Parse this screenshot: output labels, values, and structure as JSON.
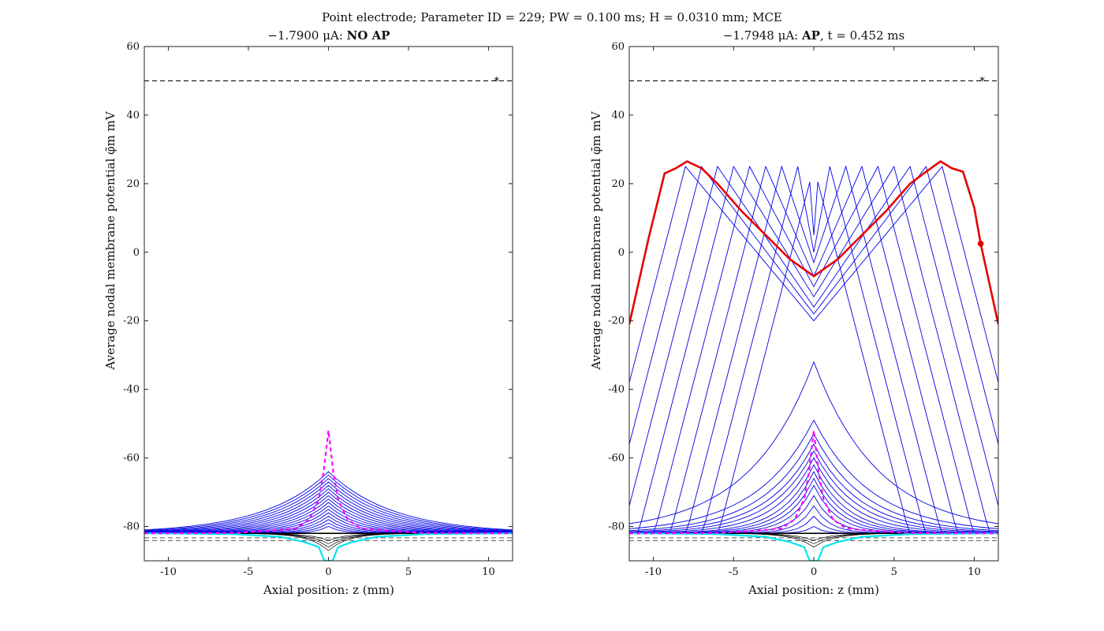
{
  "page": {
    "suptitle": "Point electrode; Parameter ID = 229; PW = 0.100 ms; H = 0.0310 mm; MCE"
  },
  "colors": {
    "blue": "#0000e6",
    "red": "#e60000",
    "magenta": "#ff00ff",
    "cyan": "#00e5ee",
    "black": "#000000",
    "gray": "#555555"
  },
  "chart_data": [
    {
      "type": "line",
      "title_prefix": "−1.7900 μA: ",
      "title_bold": "NO AP",
      "title_suffix": "",
      "xlabel": "Axial position: z (mm)",
      "ylabel": "Average nodal membrane potential φ̄m mV",
      "xlim": [
        -11.5,
        11.5
      ],
      "ylim": [
        -90,
        60
      ],
      "xticks": [
        -10,
        -5,
        0,
        5,
        10
      ],
      "xtick_labels": [
        "-10",
        "-5",
        "0",
        "5",
        "10"
      ],
      "yticks": [
        -80,
        -60,
        -40,
        -20,
        0,
        20,
        40,
        60
      ],
      "ytick_labels": [
        "-80",
        "-60",
        "-40",
        "-20",
        "0",
        "20",
        "40",
        "60"
      ],
      "grid": false,
      "threshold_line": 50,
      "threshold_marker": {
        "x": 10.5,
        "y": 50
      },
      "rest_lines": [
        -83.3,
        -84.1
      ],
      "baseline": -82,
      "blue_family": {
        "peaks": [
          -64,
          -65,
          -66,
          -67,
          -68,
          -69,
          -70,
          -71,
          -72,
          -73,
          -74,
          -75,
          -76,
          -77,
          -78,
          -79,
          -80
        ],
        "widths": [
          4.0,
          3.8,
          3.6,
          3.4,
          3.2,
          3.0,
          2.8,
          2.6,
          2.4,
          2.2,
          2.0,
          1.8,
          1.6,
          1.4,
          1.2,
          1.0,
          0.8
        ]
      },
      "magenta": [
        [
          -11.5,
          -82
        ],
        [
          -6,
          -81.9
        ],
        [
          -3,
          -81
        ],
        [
          -2,
          -80.5
        ],
        [
          -1.2,
          -78
        ],
        [
          -0.6,
          -72
        ],
        [
          -0.3,
          -64
        ],
        [
          0,
          -52
        ],
        [
          0.3,
          -64
        ],
        [
          0.6,
          -72
        ],
        [
          1.2,
          -78
        ],
        [
          2,
          -80.5
        ],
        [
          3,
          -81
        ],
        [
          6,
          -81.9
        ],
        [
          11.5,
          -82
        ]
      ],
      "cyan": [
        [
          -11.5,
          -82
        ],
        [
          -6,
          -82.2
        ],
        [
          -3,
          -83
        ],
        [
          -1.5,
          -84.5
        ],
        [
          -0.6,
          -86
        ],
        [
          -0.25,
          -90
        ],
        [
          0.25,
          -90
        ],
        [
          0.6,
          -86
        ],
        [
          1.5,
          -84.5
        ],
        [
          3,
          -83
        ],
        [
          6,
          -82.2
        ],
        [
          11.5,
          -82
        ]
      ],
      "dips": [
        -84,
        -85,
        -86,
        -87
      ],
      "red": null
    },
    {
      "type": "line",
      "title_prefix": "−1.7948 μA: ",
      "title_bold": "AP",
      "title_suffix": ", t = 0.452 ms",
      "xlabel": "Axial position: z (mm)",
      "ylabel": "Average nodal membrane potential φ̄m mV",
      "xlim": [
        -11.5,
        11.5
      ],
      "ylim": [
        -90,
        60
      ],
      "xticks": [
        -10,
        -5,
        0,
        5,
        10
      ],
      "xtick_labels": [
        "-10",
        "-5",
        "0",
        "5",
        "10"
      ],
      "yticks": [
        -80,
        -60,
        -40,
        -20,
        0,
        20,
        40,
        60
      ],
      "ytick_labels": [
        "-80",
        "-60",
        "-40",
        "-20",
        "0",
        "20",
        "40",
        "60"
      ],
      "grid": false,
      "threshold_line": 50,
      "threshold_marker": {
        "x": 10.5,
        "y": 50
      },
      "rest_lines": [
        -83.3,
        -84.1
      ],
      "baseline": -82,
      "blue_family": {
        "peaks": [
          -32,
          -49,
          -53,
          -56,
          -58,
          -60,
          -62,
          -64,
          -66,
          -68,
          -71,
          -74,
          -77,
          -80
        ],
        "widths": [
          4.0,
          3.6,
          3.2,
          2.9,
          2.6,
          2.3,
          2.0,
          1.8,
          1.6,
          1.4,
          1.2,
          1.0,
          0.8,
          0.6
        ]
      },
      "ap_fronts": [
        0,
        1,
        2,
        3,
        4,
        5,
        6,
        7,
        8
      ],
      "ap_centers": [
        5,
        0,
        -3,
        -7,
        -10,
        -13,
        -16,
        -18,
        -20
      ],
      "magenta": [
        [
          -11.5,
          -82
        ],
        [
          -6,
          -81.9
        ],
        [
          -3,
          -81
        ],
        [
          -2,
          -80.5
        ],
        [
          -1.2,
          -78
        ],
        [
          -0.6,
          -72
        ],
        [
          -0.3,
          -64
        ],
        [
          0,
          -52
        ],
        [
          0.3,
          -64
        ],
        [
          0.6,
          -72
        ],
        [
          1.2,
          -78
        ],
        [
          2,
          -80.5
        ],
        [
          3,
          -81
        ],
        [
          6,
          -81.9
        ],
        [
          11.5,
          -82
        ]
      ],
      "cyan": [
        [
          -11.5,
          -82
        ],
        [
          -6,
          -82.2
        ],
        [
          -3,
          -83
        ],
        [
          -1.5,
          -84.5
        ],
        [
          -0.6,
          -86
        ],
        [
          -0.25,
          -90
        ],
        [
          0.25,
          -90
        ],
        [
          0.6,
          -86
        ],
        [
          1.5,
          -84.5
        ],
        [
          3,
          -83
        ],
        [
          6,
          -82.2
        ],
        [
          11.5,
          -82
        ]
      ],
      "dips": [
        -84,
        -85,
        -86
      ],
      "red": [
        [
          -11.5,
          -21
        ],
        [
          -10.3,
          4
        ],
        [
          -9.3,
          23
        ],
        [
          -8.6,
          24.5
        ],
        [
          -7.9,
          26.5
        ],
        [
          -7.0,
          24.5
        ],
        [
          -6.0,
          20
        ],
        [
          -4.5,
          12
        ],
        [
          -3.0,
          5
        ],
        [
          -1.5,
          -2
        ],
        [
          0,
          -7
        ],
        [
          1.5,
          -2
        ],
        [
          3.0,
          5
        ],
        [
          4.5,
          12
        ],
        [
          6.0,
          20
        ],
        [
          7.0,
          23.5
        ],
        [
          7.9,
          26.5
        ],
        [
          8.6,
          24.5
        ],
        [
          9.3,
          23.5
        ],
        [
          10.0,
          13
        ],
        [
          10.4,
          2.5
        ],
        [
          11.5,
          -21
        ]
      ],
      "red_marker": {
        "x": 10.4,
        "y": 2.5
      }
    }
  ]
}
